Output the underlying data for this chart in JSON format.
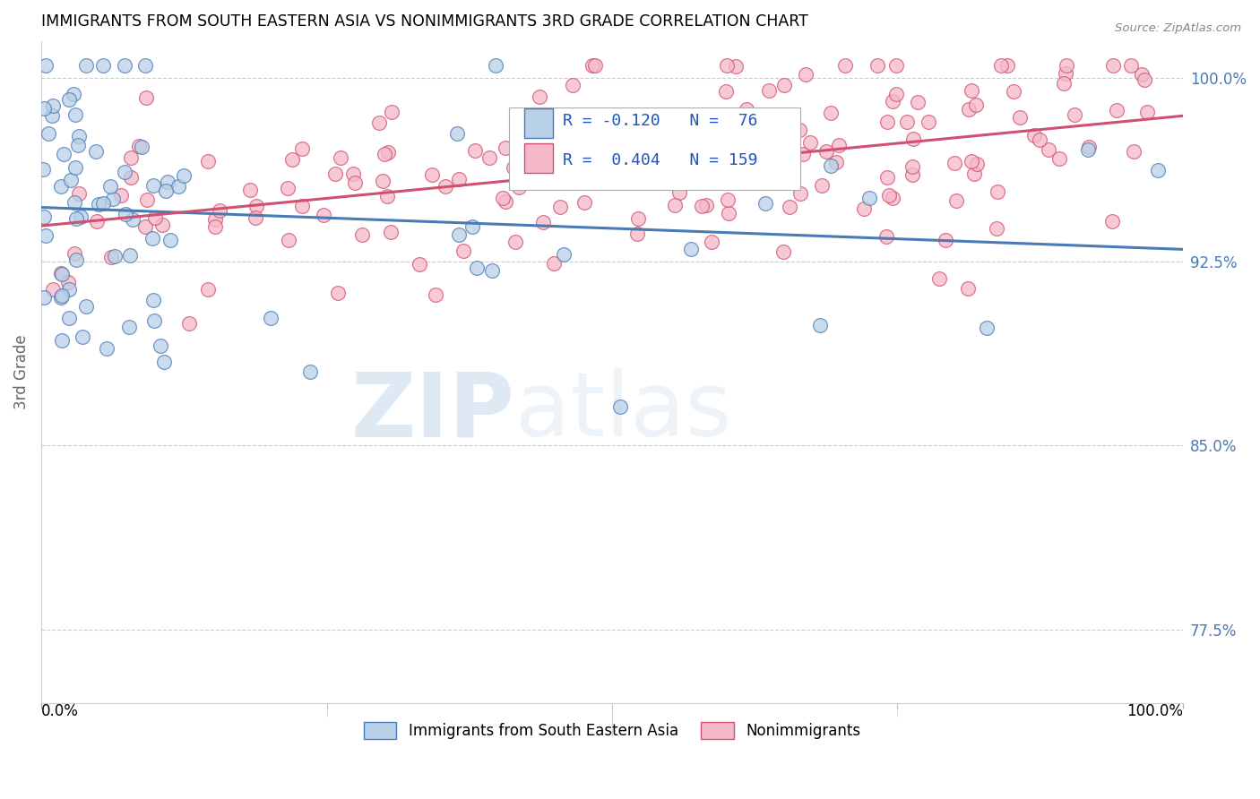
{
  "title": "IMMIGRANTS FROM SOUTH EASTERN ASIA VS NONIMMIGRANTS 3RD GRADE CORRELATION CHART",
  "source": "Source: ZipAtlas.com",
  "ylabel": "3rd Grade",
  "xlim": [
    0,
    1
  ],
  "ylim": [
    0.745,
    1.015
  ],
  "yticks": [
    0.775,
    0.85,
    0.925,
    1.0
  ],
  "ytick_labels": [
    "77.5%",
    "85.0%",
    "92.5%",
    "100.0%"
  ],
  "blue_R": -0.12,
  "blue_N": 76,
  "pink_R": 0.404,
  "pink_N": 159,
  "blue_color": "#b8d0e8",
  "blue_line_color": "#4a7ab5",
  "pink_color": "#f5b8c8",
  "pink_line_color": "#d05070",
  "watermark_zip": "ZIP",
  "watermark_atlas": "atlas",
  "legend_label_blue": "Immigrants from South Eastern Asia",
  "legend_label_pink": "Nonimmigrants",
  "blue_seed": 7,
  "pink_seed": 42
}
